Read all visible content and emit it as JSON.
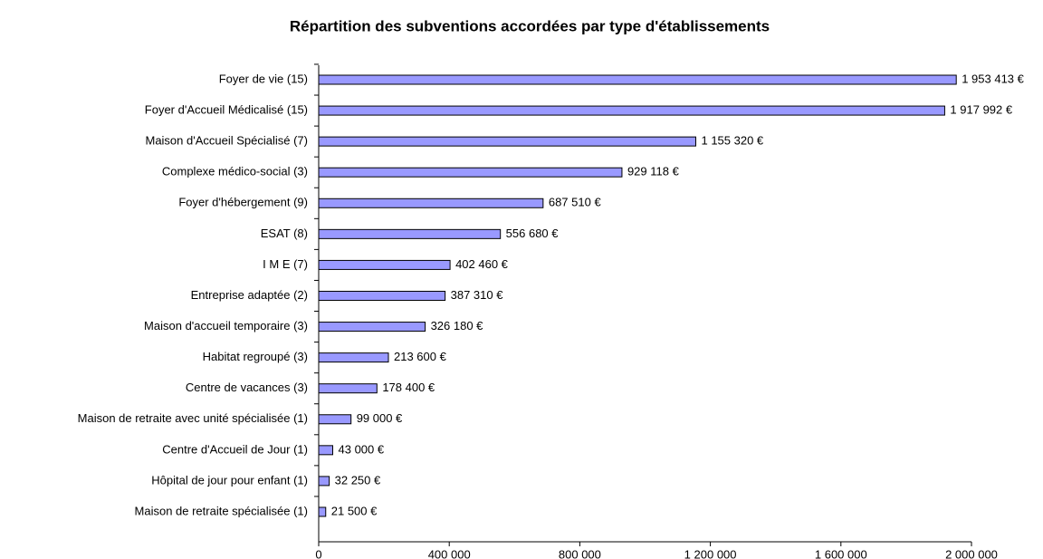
{
  "chart_data": {
    "type": "hbar",
    "title": "Répartition des subventions accordées par type d'établissements",
    "categories": [
      "Foyer de vie (15)",
      "Foyer d'Accueil Médicalisé (15)",
      "Maison d'Accueil Spécialisé (7)",
      "Complexe médico-social (3)",
      "Foyer d'hébergement (9)",
      "ESAT (8)",
      "I M E (7)",
      "Entreprise adaptée (2)",
      "Maison d'accueil temporaire (3)",
      "Habitat regroupé (3)",
      "Centre de vacances (3)",
      "Maison de retraite avec unité spécialisée (1)",
      "Centre d'Accueil de Jour (1)",
      "Hôpital de jour pour enfant (1)",
      "Maison de retraite spécialisée (1)"
    ],
    "values": [
      1953413,
      1917992,
      1155320,
      929118,
      687510,
      556680,
      402460,
      387310,
      326180,
      213600,
      178400,
      99000,
      43000,
      32250,
      21500
    ],
    "value_labels": [
      "1 953 413 €",
      "1 917 992 €",
      "1 155 320 €",
      "929 118 €",
      "687 510 €",
      "556 680 €",
      "402 460 €",
      "387 310 €",
      "326 180 €",
      "213 600 €",
      "178 400 €",
      "99 000 €",
      "43 000 €",
      "32 250 €",
      "21 500 €"
    ],
    "color": "#9999ff",
    "xlim": [
      0,
      2000000
    ],
    "xticks": [
      0,
      {
        "value": 400000,
        "label": "400 000"
      },
      {
        "value": 800000,
        "label": "800 000"
      },
      {
        "value": 1200000,
        "label": "1 200 000"
      },
      {
        "value": 1600000,
        "label": "1 600 000"
      },
      {
        "value": 2000000,
        "label": "2 000 000"
      }
    ],
    "grid": false
  }
}
